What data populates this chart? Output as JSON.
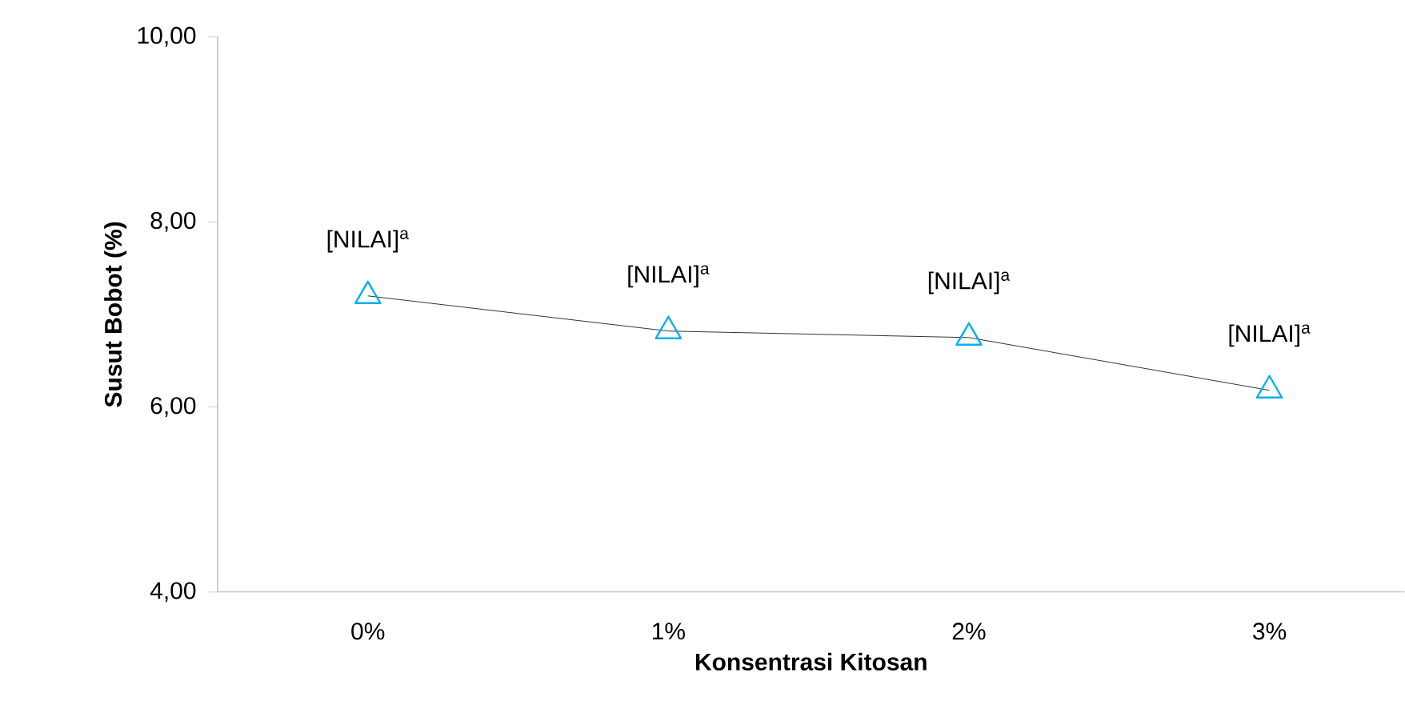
{
  "chart_data": {
    "type": "line",
    "xlabel": "Konsentrasi Kitosan",
    "ylabel": "Susut Bobot (%)",
    "categories": [
      "0%",
      "1%",
      "2%",
      "3%"
    ],
    "series": [
      {
        "color": "#00b0f0",
        "values": [
          7.2,
          6.82,
          6.75,
          6.18
        ]
      }
    ],
    "ylim": [
      4,
      10
    ],
    "yticks": [
      {
        "value": 4,
        "label": "4,00"
      },
      {
        "value": 6,
        "label": "6,00"
      },
      {
        "value": 8,
        "label": "8,00"
      },
      {
        "value": 10,
        "label": "10,00"
      }
    ],
    "marker": "triangle",
    "line_style": "solid",
    "grid": false,
    "annotations": [
      {
        "text": "[NILAI]$^{a}$",
        "x": "0%",
        "y": 7.2
      },
      {
        "text": "[NILAI]$^{a}$",
        "x": "1%",
        "y": 6.82
      },
      {
        "text": "[NILAI]$^{a}$",
        "x": "2%",
        "y": 6.75
      },
      {
        "text": "[NILAI]$^{a}$",
        "x": "3%",
        "y": 6.18
      }
    ]
  }
}
